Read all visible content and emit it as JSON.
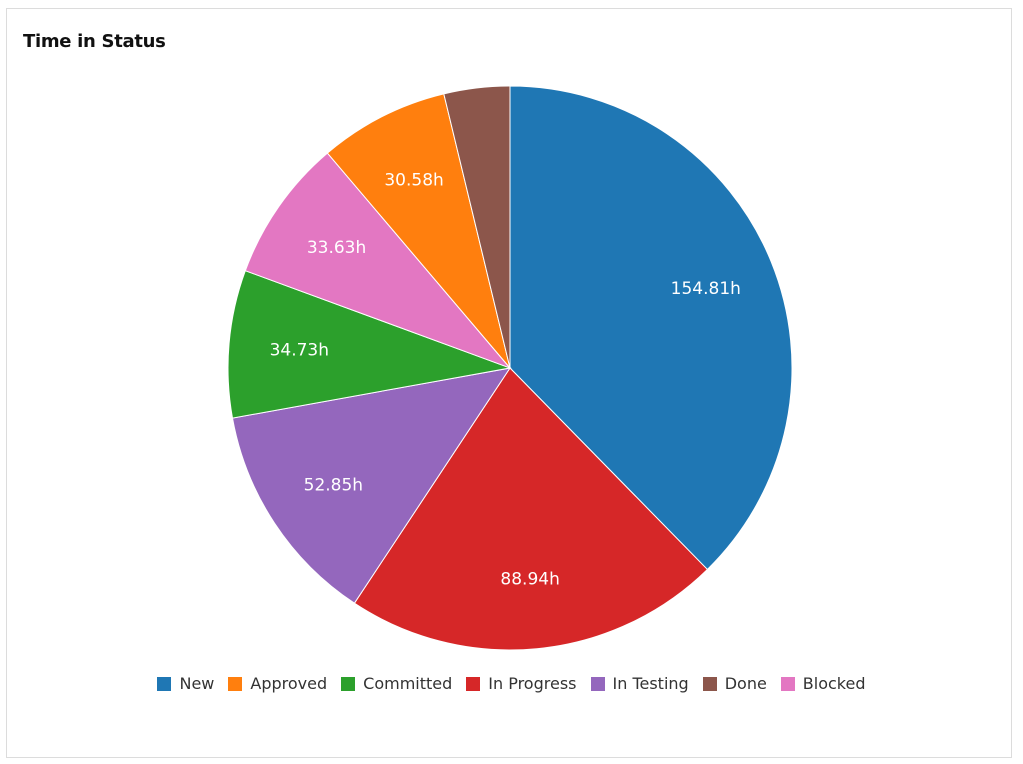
{
  "chart_data": {
    "type": "pie",
    "title": "Time in Status",
    "unit_suffix": "h",
    "slices": [
      {
        "name": "New",
        "value": 154.81,
        "label": "154.81h",
        "color": "#1f77b4"
      },
      {
        "name": "In Progress",
        "value": 88.94,
        "label": "88.94h",
        "color": "#d62728"
      },
      {
        "name": "In Testing",
        "value": 52.85,
        "label": "52.85h",
        "color": "#9467bd"
      },
      {
        "name": "Committed",
        "value": 34.73,
        "label": "34.73h",
        "color": "#2ca02c"
      },
      {
        "name": "Blocked",
        "value": 33.63,
        "label": "33.63h",
        "color": "#e377c2"
      },
      {
        "name": "Approved",
        "value": 30.58,
        "label": "30.58h",
        "color": "#ff7f0e"
      },
      {
        "name": "Done",
        "value": 15.5,
        "label": "",
        "color": "#8c564b"
      }
    ],
    "legend": {
      "position": "bottom",
      "items": [
        {
          "name": "New",
          "color": "#1f77b4"
        },
        {
          "name": "Approved",
          "color": "#ff7f0e"
        },
        {
          "name": "Committed",
          "color": "#2ca02c"
        },
        {
          "name": "In Progress",
          "color": "#d62728"
        },
        {
          "name": "In Testing",
          "color": "#9467bd"
        },
        {
          "name": "Done",
          "color": "#8c564b"
        },
        {
          "name": "Blocked",
          "color": "#e377c2"
        }
      ]
    }
  }
}
